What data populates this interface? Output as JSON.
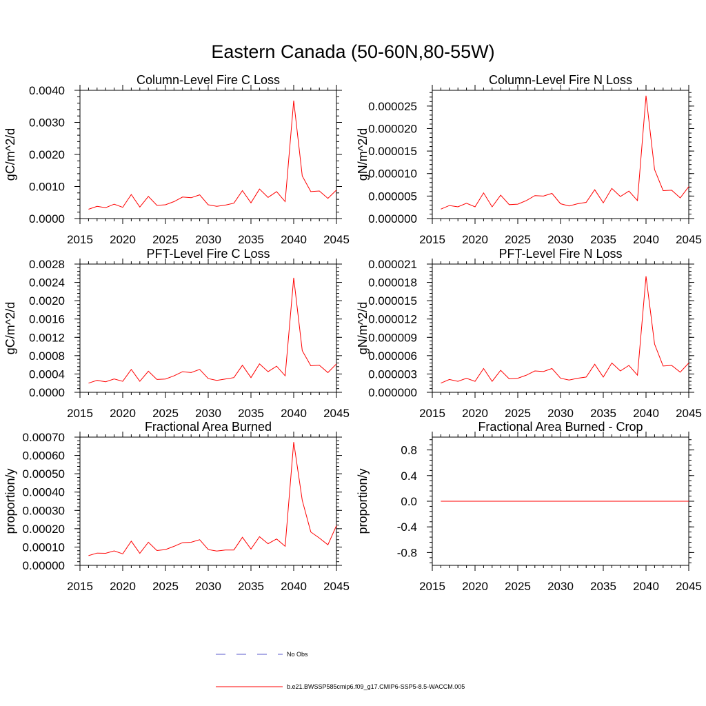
{
  "figure_title": "Eastern Canada (50-60N,80-55W)",
  "colors": {
    "model": "#ff0000",
    "obs": "#5a5acd",
    "axis": "#000000"
  },
  "legend": {
    "obs_label": "No Obs",
    "model_label": "b.e21.BWSSP585cmip6.f09_g17.CMIP6-SSP5-8.5-WACCM.005"
  },
  "chart_data": [
    {
      "type": "line",
      "title": "Column-Level Fire C Loss",
      "ylabel": "gC/m^2/d",
      "xlim": [
        2015,
        2045
      ],
      "ylim": [
        0,
        0.004
      ],
      "xticks": [
        2015,
        2020,
        2025,
        2030,
        2035,
        2040,
        2045
      ],
      "yticks": [
        0,
        0.001,
        0.002,
        0.003,
        0.004
      ],
      "yticklabels": [
        "0.0000",
        "0.0010",
        "0.0020",
        "0.0030",
        "0.0040"
      ],
      "x": [
        2016,
        2017,
        2018,
        2019,
        2020,
        2021,
        2022,
        2023,
        2024,
        2025,
        2026,
        2027,
        2028,
        2029,
        2030,
        2031,
        2032,
        2033,
        2034,
        2035,
        2036,
        2037,
        2038,
        2039,
        2040,
        2041,
        2042,
        2043,
        2044,
        2045
      ],
      "series": [
        {
          "name": "b.e21.BWSSP585cmip6.f09_g17.CMIP6-SSP5-8.5-WACCM.005",
          "values": [
            0.00029,
            0.00038,
            0.00034,
            0.00045,
            0.00035,
            0.00075,
            0.00036,
            0.00069,
            0.00041,
            0.00043,
            0.00053,
            0.00067,
            0.00065,
            0.00074,
            0.00043,
            0.00038,
            0.00042,
            0.00048,
            0.00087,
            0.00049,
            0.00092,
            0.00066,
            0.00084,
            0.00053,
            0.00368,
            0.00133,
            0.00084,
            0.00086,
            0.00063,
            0.00089
          ]
        }
      ]
    },
    {
      "type": "line",
      "title": "Column-Level Fire N Loss",
      "ylabel": "gN/m^2/d",
      "xlim": [
        2015,
        2045
      ],
      "ylim": [
        0,
        2.85e-05
      ],
      "xticks": [
        2015,
        2020,
        2025,
        2030,
        2035,
        2040,
        2045
      ],
      "yticks": [
        0,
        5e-06,
        1e-05,
        1.5e-05,
        2e-05,
        2.5e-05
      ],
      "yticklabels": [
        "0.000000",
        "0.000005",
        "0.000010",
        "0.000015",
        "0.000020",
        "0.000025"
      ],
      "x": [
        2016,
        2017,
        2018,
        2019,
        2020,
        2021,
        2022,
        2023,
        2024,
        2025,
        2026,
        2027,
        2028,
        2029,
        2030,
        2031,
        2032,
        2033,
        2034,
        2035,
        2036,
        2037,
        2038,
        2039,
        2040,
        2041,
        2042,
        2043,
        2044,
        2045
      ],
      "series": [
        {
          "name": "b.e21.BWSSP585cmip6.f09_g17.CMIP6-SSP5-8.5-WACCM.005",
          "values": [
            2.1e-06,
            2.9e-06,
            2.6e-06,
            3.4e-06,
            2.6e-06,
            5.7e-06,
            2.6e-06,
            5.2e-06,
            3.1e-06,
            3.2e-06,
            4e-06,
            5.1e-06,
            5e-06,
            5.6e-06,
            3.3e-06,
            2.8e-06,
            3.3e-06,
            3.6e-06,
            6.4e-06,
            3.5e-06,
            6.7e-06,
            4.9e-06,
            6.1e-06,
            4e-06,
            2.73e-05,
            1.09e-05,
            6.2e-06,
            6.3e-06,
            4.6e-06,
            7.1e-06
          ]
        }
      ]
    },
    {
      "type": "line",
      "title": "PFT-Level Fire C Loss",
      "ylabel": "gC/m^2/d",
      "xlim": [
        2015,
        2045
      ],
      "ylim": [
        0,
        0.0028
      ],
      "xticks": [
        2015,
        2020,
        2025,
        2030,
        2035,
        2040,
        2045
      ],
      "yticks": [
        0,
        0.0004,
        0.0008,
        0.0012,
        0.0016,
        0.002,
        0.0024,
        0.0028
      ],
      "yticklabels": [
        "0.0000",
        "0.0004",
        "0.0008",
        "0.0012",
        "0.0016",
        "0.0020",
        "0.0024",
        "0.0028"
      ],
      "x": [
        2016,
        2017,
        2018,
        2019,
        2020,
        2021,
        2022,
        2023,
        2024,
        2025,
        2026,
        2027,
        2028,
        2029,
        2030,
        2031,
        2032,
        2033,
        2034,
        2035,
        2036,
        2037,
        2038,
        2039,
        2040,
        2041,
        2042,
        2043,
        2044,
        2045
      ],
      "series": [
        {
          "name": "b.e21.BWSSP585cmip6.f09_g17.CMIP6-SSP5-8.5-WACCM.005",
          "values": [
            0.0002,
            0.00026,
            0.00023,
            0.00029,
            0.00024,
            0.0005,
            0.00024,
            0.00046,
            0.00028,
            0.00029,
            0.00036,
            0.00045,
            0.00043,
            0.0005,
            0.0003,
            0.00026,
            0.00029,
            0.00032,
            0.00059,
            0.00032,
            0.00062,
            0.00045,
            0.00057,
            0.00036,
            0.0025,
            0.00091,
            0.00058,
            0.00059,
            0.00043,
            0.00062
          ]
        }
      ]
    },
    {
      "type": "line",
      "title": "PFT-Level Fire N Loss",
      "ylabel": "gN/m^2/d",
      "xlim": [
        2015,
        2045
      ],
      "ylim": [
        0,
        2.1e-05
      ],
      "xticks": [
        2015,
        2020,
        2025,
        2030,
        2035,
        2040,
        2045
      ],
      "yticks": [
        0,
        3e-06,
        6e-06,
        9e-06,
        1.2e-05,
        1.5e-05,
        1.8e-05,
        2.1e-05
      ],
      "yticklabels": [
        "0.000000",
        "0.000003",
        "0.000006",
        "0.000009",
        "0.000012",
        "0.000015",
        "0.000018",
        "0.000021"
      ],
      "x": [
        2016,
        2017,
        2018,
        2019,
        2020,
        2021,
        2022,
        2023,
        2024,
        2025,
        2026,
        2027,
        2028,
        2029,
        2030,
        2031,
        2032,
        2033,
        2034,
        2035,
        2036,
        2037,
        2038,
        2039,
        2040,
        2041,
        2042,
        2043,
        2044,
        2045
      ],
      "series": [
        {
          "name": "b.e21.BWSSP585cmip6.f09_g17.CMIP6-SSP5-8.5-WACCM.005",
          "values": [
            1.5e-06,
            2.1e-06,
            1.8e-06,
            2.3e-06,
            1.8e-06,
            3.9e-06,
            1.8e-06,
            3.6e-06,
            2.2e-06,
            2.3e-06,
            2.8e-06,
            3.5e-06,
            3.4e-06,
            3.9e-06,
            2.3e-06,
            2e-06,
            2.3e-06,
            2.5e-06,
            4.6e-06,
            2.5e-06,
            4.8e-06,
            3.5e-06,
            4.4e-06,
            2.8e-06,
            1.9e-05,
            7.9e-06,
            4.3e-06,
            4.4e-06,
            3.3e-06,
            4.8e-06
          ]
        }
      ]
    },
    {
      "type": "line",
      "title": "Fractional Area Burned",
      "ylabel": "proportion/y",
      "xlim": [
        2015,
        2045
      ],
      "ylim": [
        0,
        0.0007
      ],
      "xticks": [
        2015,
        2020,
        2025,
        2030,
        2035,
        2040,
        2045
      ],
      "yticks": [
        0,
        0.0001,
        0.0002,
        0.0003,
        0.0004,
        0.0005,
        0.0006,
        0.0007
      ],
      "yticklabels": [
        "0.00000",
        "0.00010",
        "0.00020",
        "0.00030",
        "0.00040",
        "0.00050",
        "0.00060",
        "0.00070"
      ],
      "x": [
        2016,
        2017,
        2018,
        2019,
        2020,
        2021,
        2022,
        2023,
        2024,
        2025,
        2026,
        2027,
        2028,
        2029,
        2030,
        2031,
        2032,
        2033,
        2034,
        2035,
        2036,
        2037,
        2038,
        2039,
        2040,
        2041,
        2042,
        2043,
        2044,
        2045
      ],
      "series": [
        {
          "name": "b.e21.BWSSP585cmip6.f09_g17.CMIP6-SSP5-8.5-WACCM.005",
          "values": [
            5.3e-05,
            6.7e-05,
            6.6e-05,
            7.9e-05,
            6.3e-05,
            0.000132,
            6.6e-05,
            0.000126,
            8.1e-05,
            8.6e-05,
            0.000104,
            0.000124,
            0.000126,
            0.00014,
            8.6e-05,
            7.8e-05,
            8.4e-05,
            8.4e-05,
            0.000153,
            8.9e-05,
            0.000156,
            0.000118,
            0.000144,
            0.000104,
            0.000673,
            0.000355,
            0.000182,
            0.000149,
            0.000112,
            0.000217
          ]
        }
      ]
    },
    {
      "type": "line",
      "title": "Fractional Area Burned - Crop",
      "ylabel": "proportion/y",
      "xlim": [
        2015,
        2045
      ],
      "ylim": [
        -1,
        1
      ],
      "xticks": [
        2015,
        2020,
        2025,
        2030,
        2035,
        2040,
        2045
      ],
      "yticks": [
        -0.8,
        -0.4,
        0,
        0.4,
        0.8
      ],
      "yticklabels": [
        "-0.8",
        "-0.4",
        "0.0",
        "0.4",
        "0.8"
      ],
      "x": [
        2016,
        2045
      ],
      "series": [
        {
          "name": "b.e21.BWSSP585cmip6.f09_g17.CMIP6-SSP5-8.5-WACCM.005",
          "values": [
            0,
            0
          ]
        }
      ]
    }
  ]
}
